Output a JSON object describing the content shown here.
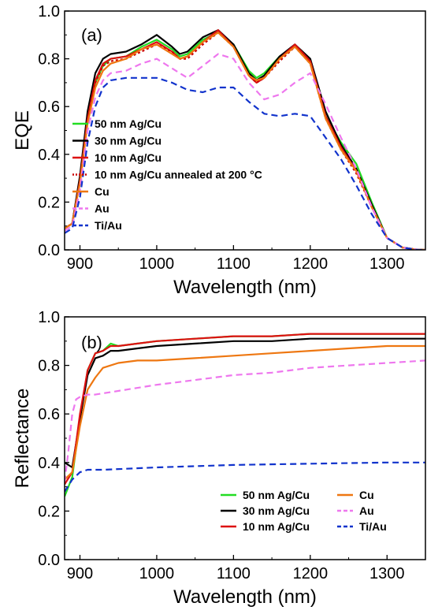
{
  "chart_data": [
    {
      "type": "line",
      "panel_label": "(a)",
      "xlabel": "Wavelength (nm)",
      "ylabel": "EQE",
      "xlim": [
        880,
        1350
      ],
      "ylim": [
        0.0,
        1.0
      ],
      "xticks": [
        900,
        1000,
        1100,
        1200,
        1300
      ],
      "yticks": [
        0.0,
        0.2,
        0.4,
        0.6,
        0.8,
        1.0
      ],
      "tick_labels_x": [
        "900",
        "1000",
        "1100",
        "1200",
        "1300"
      ],
      "tick_labels_y": [
        "0.0",
        "0.2",
        "0.4",
        "0.6",
        "0.8",
        "1.0"
      ],
      "legend_position": "center-left",
      "series": [
        {
          "name": "50 nm Ag/Cu",
          "color": "#22dd22",
          "dash": "solid",
          "x": [
            880,
            890,
            900,
            910,
            920,
            930,
            940,
            960,
            980,
            1000,
            1020,
            1030,
            1040,
            1060,
            1080,
            1100,
            1120,
            1130,
            1140,
            1160,
            1180,
            1200,
            1220,
            1240,
            1260,
            1280,
            1300,
            1320,
            1340,
            1350
          ],
          "y": [
            0.09,
            0.11,
            0.3,
            0.56,
            0.7,
            0.77,
            0.8,
            0.81,
            0.85,
            0.88,
            0.84,
            0.81,
            0.82,
            0.88,
            0.91,
            0.86,
            0.75,
            0.72,
            0.74,
            0.81,
            0.85,
            0.79,
            0.56,
            0.45,
            0.36,
            0.2,
            0.05,
            0.01,
            0.0,
            0.0
          ]
        },
        {
          "name": "30 nm Ag/Cu",
          "color": "#000000",
          "dash": "solid",
          "x": [
            880,
            890,
            900,
            910,
            920,
            930,
            940,
            960,
            980,
            1000,
            1020,
            1030,
            1040,
            1060,
            1080,
            1100,
            1120,
            1130,
            1140,
            1160,
            1180,
            1200,
            1220,
            1240,
            1260,
            1280,
            1300,
            1320,
            1340,
            1350
          ],
          "y": [
            0.09,
            0.11,
            0.31,
            0.58,
            0.74,
            0.8,
            0.82,
            0.83,
            0.86,
            0.9,
            0.85,
            0.82,
            0.83,
            0.89,
            0.92,
            0.86,
            0.74,
            0.71,
            0.73,
            0.81,
            0.86,
            0.8,
            0.58,
            0.44,
            0.34,
            0.19,
            0.05,
            0.01,
            0.0,
            0.0
          ]
        },
        {
          "name": "10 nm Ag/Cu",
          "color": "#dd1111",
          "dash": "solid",
          "x": [
            880,
            890,
            900,
            910,
            920,
            930,
            940,
            960,
            980,
            1000,
            1020,
            1030,
            1040,
            1060,
            1080,
            1100,
            1120,
            1130,
            1140,
            1160,
            1180,
            1200,
            1220,
            1240,
            1260,
            1280,
            1300,
            1320,
            1340,
            1350
          ],
          "y": [
            0.09,
            0.11,
            0.29,
            0.55,
            0.71,
            0.78,
            0.8,
            0.81,
            0.84,
            0.87,
            0.83,
            0.8,
            0.81,
            0.87,
            0.92,
            0.85,
            0.73,
            0.7,
            0.72,
            0.8,
            0.86,
            0.79,
            0.56,
            0.43,
            0.33,
            0.18,
            0.05,
            0.01,
            0.0,
            0.0
          ]
        },
        {
          "name": "10 nm Ag/Cu annealed at 200 °C",
          "color": "#cc0000",
          "dash": "dotted",
          "x": [
            880,
            890,
            900,
            910,
            920,
            930,
            940,
            960,
            980,
            1000,
            1020,
            1030,
            1040,
            1060,
            1080,
            1100,
            1120,
            1130,
            1140,
            1160,
            1180,
            1200,
            1220,
            1240,
            1260,
            1280,
            1300,
            1320,
            1340,
            1350
          ],
          "y": [
            0.09,
            0.11,
            0.28,
            0.54,
            0.7,
            0.77,
            0.79,
            0.8,
            0.83,
            0.86,
            0.83,
            0.8,
            0.8,
            0.86,
            0.91,
            0.85,
            0.73,
            0.7,
            0.72,
            0.79,
            0.85,
            0.78,
            0.55,
            0.42,
            0.32,
            0.18,
            0.05,
            0.01,
            0.0,
            0.0
          ]
        },
        {
          "name": "Cu",
          "color": "#ee7711",
          "dash": "solid",
          "x": [
            880,
            890,
            900,
            910,
            920,
            930,
            940,
            960,
            980,
            1000,
            1020,
            1030,
            1040,
            1060,
            1080,
            1100,
            1120,
            1130,
            1140,
            1160,
            1180,
            1200,
            1220,
            1240,
            1260,
            1280,
            1300,
            1320,
            1340,
            1350
          ],
          "y": [
            0.09,
            0.11,
            0.28,
            0.53,
            0.68,
            0.75,
            0.78,
            0.8,
            0.84,
            0.86,
            0.82,
            0.8,
            0.81,
            0.87,
            0.91,
            0.85,
            0.73,
            0.71,
            0.72,
            0.8,
            0.85,
            0.78,
            0.55,
            0.42,
            0.33,
            0.18,
            0.05,
            0.01,
            0.0,
            0.0
          ]
        },
        {
          "name": "Au",
          "color": "#ee77ee",
          "dash": "dashed",
          "x": [
            880,
            890,
            900,
            910,
            920,
            930,
            940,
            960,
            980,
            1000,
            1020,
            1040,
            1060,
            1080,
            1100,
            1120,
            1140,
            1160,
            1180,
            1200,
            1220,
            1240,
            1260,
            1280,
            1300,
            1320,
            1340,
            1350
          ],
          "y": [
            0.08,
            0.1,
            0.25,
            0.5,
            0.64,
            0.71,
            0.74,
            0.75,
            0.78,
            0.8,
            0.76,
            0.72,
            0.77,
            0.82,
            0.8,
            0.7,
            0.63,
            0.65,
            0.7,
            0.74,
            0.61,
            0.47,
            0.34,
            0.18,
            0.05,
            0.01,
            0.0,
            0.0
          ]
        },
        {
          "name": "Ti/Au",
          "color": "#1133cc",
          "dash": "dashed",
          "x": [
            880,
            890,
            900,
            910,
            920,
            930,
            940,
            960,
            980,
            1000,
            1020,
            1040,
            1060,
            1080,
            1100,
            1120,
            1140,
            1160,
            1180,
            1200,
            1220,
            1240,
            1260,
            1280,
            1300,
            1320,
            1340,
            1350
          ],
          "y": [
            0.07,
            0.09,
            0.22,
            0.45,
            0.6,
            0.68,
            0.71,
            0.72,
            0.72,
            0.72,
            0.7,
            0.67,
            0.66,
            0.68,
            0.68,
            0.62,
            0.57,
            0.56,
            0.57,
            0.56,
            0.47,
            0.38,
            0.27,
            0.15,
            0.05,
            0.01,
            0.0,
            0.0
          ]
        }
      ]
    },
    {
      "type": "line",
      "panel_label": "(b)",
      "xlabel": "Wavelength (nm)",
      "ylabel": "Reflectance",
      "xlim": [
        880,
        1350
      ],
      "ylim": [
        0.0,
        1.0
      ],
      "xticks": [
        900,
        1000,
        1100,
        1200,
        1300
      ],
      "yticks": [
        0.0,
        0.2,
        0.4,
        0.6,
        0.8,
        1.0
      ],
      "tick_labels_x": [
        "900",
        "1000",
        "1100",
        "1200",
        "1300"
      ],
      "tick_labels_y": [
        "0.0",
        "0.2",
        "0.4",
        "0.6",
        "0.8",
        "1.0"
      ],
      "legend_position": "bottom-right",
      "series": [
        {
          "name": "50 nm Ag/Cu",
          "color": "#22dd22",
          "dash": "solid",
          "x": [
            880,
            890,
            900,
            910,
            920,
            930,
            940,
            950,
            975,
            1000,
            1050,
            1100,
            1150,
            1200,
            1250,
            1300,
            1350
          ],
          "y": [
            0.26,
            0.34,
            0.58,
            0.78,
            0.85,
            0.86,
            0.89,
            0.88,
            0.89,
            0.9,
            0.91,
            0.92,
            0.92,
            0.93,
            0.93,
            0.93,
            0.93
          ]
        },
        {
          "name": "30 nm Ag/Cu",
          "color": "#000000",
          "dash": "solid",
          "x": [
            880,
            890,
            900,
            910,
            920,
            930,
            940,
            950,
            975,
            1000,
            1050,
            1100,
            1150,
            1200,
            1250,
            1300,
            1350
          ],
          "y": [
            0.4,
            0.38,
            0.58,
            0.76,
            0.83,
            0.84,
            0.86,
            0.86,
            0.87,
            0.88,
            0.89,
            0.9,
            0.9,
            0.91,
            0.91,
            0.91,
            0.91
          ]
        },
        {
          "name": "10 nm Ag/Cu",
          "color": "#dd1111",
          "dash": "solid",
          "x": [
            880,
            890,
            900,
            910,
            920,
            930,
            940,
            950,
            975,
            1000,
            1050,
            1100,
            1150,
            1200,
            1250,
            1300,
            1350
          ],
          "y": [
            0.31,
            0.36,
            0.6,
            0.78,
            0.85,
            0.86,
            0.88,
            0.88,
            0.89,
            0.9,
            0.91,
            0.92,
            0.92,
            0.93,
            0.93,
            0.93,
            0.93
          ]
        },
        {
          "name": "Cu",
          "color": "#ee7711",
          "dash": "solid",
          "x": [
            880,
            890,
            900,
            910,
            920,
            930,
            940,
            950,
            975,
            1000,
            1050,
            1100,
            1150,
            1200,
            1250,
            1300,
            1350
          ],
          "y": [
            0.33,
            0.36,
            0.55,
            0.7,
            0.75,
            0.79,
            0.8,
            0.81,
            0.82,
            0.82,
            0.83,
            0.84,
            0.85,
            0.86,
            0.87,
            0.88,
            0.88
          ]
        },
        {
          "name": "Au",
          "color": "#ee77ee",
          "dash": "dashed",
          "x": [
            880,
            885,
            890,
            895,
            900,
            910,
            920,
            940,
            960,
            1000,
            1050,
            1100,
            1150,
            1200,
            1250,
            1300,
            1350
          ],
          "y": [
            0.32,
            0.45,
            0.6,
            0.66,
            0.67,
            0.68,
            0.68,
            0.69,
            0.7,
            0.72,
            0.74,
            0.76,
            0.77,
            0.79,
            0.8,
            0.81,
            0.82
          ]
        },
        {
          "name": "Ti/Au",
          "color": "#1133cc",
          "dash": "dashed",
          "x": [
            880,
            890,
            900,
            910,
            930,
            1000,
            1100,
            1200,
            1300,
            1350
          ],
          "y": [
            0.28,
            0.33,
            0.36,
            0.37,
            0.37,
            0.38,
            0.39,
            0.395,
            0.4,
            0.4
          ]
        }
      ]
    }
  ]
}
